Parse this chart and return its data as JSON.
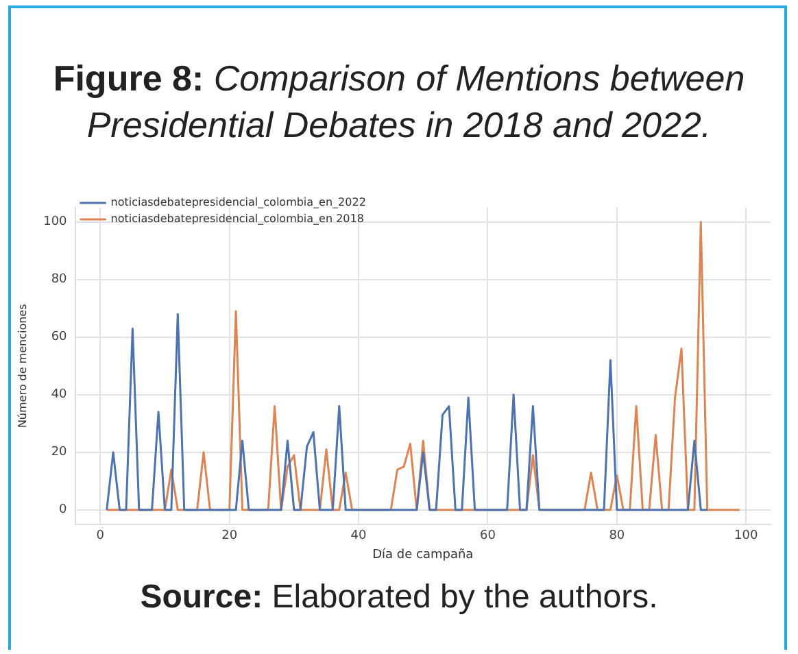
{
  "chart_data": {
    "type": "line",
    "title": "Figure 8: Comparison of Mentions between Presidential Debates in 2018 and 2022.",
    "xlabel": "Día de campaña",
    "ylabel": "Número de menciones",
    "annotations": [
      "Source: Elaborated by the authors."
    ],
    "x": [
      1,
      2,
      3,
      4,
      5,
      6,
      7,
      8,
      9,
      10,
      11,
      12,
      13,
      14,
      15,
      16,
      17,
      18,
      19,
      20,
      21,
      22,
      23,
      24,
      25,
      26,
      27,
      28,
      29,
      30,
      31,
      32,
      33,
      34,
      35,
      36,
      37,
      38,
      39,
      40,
      41,
      42,
      43,
      44,
      45,
      46,
      47,
      48,
      49,
      50,
      51,
      52,
      53,
      54,
      55,
      56,
      57,
      58,
      59,
      60,
      61,
      62,
      63,
      64,
      65,
      66,
      67,
      68,
      69,
      70,
      71,
      72,
      73,
      74,
      75,
      76,
      77,
      78,
      79,
      80,
      81,
      82,
      83,
      84,
      85,
      86,
      87,
      88,
      89,
      90,
      91,
      92,
      93,
      94,
      95,
      96,
      97,
      98,
      99
    ],
    "series": [
      {
        "name": "noticiasdebatepresidencial_colombia_en_2022",
        "color": "#4c72b0",
        "values": [
          0,
          20,
          0,
          0,
          63,
          0,
          0,
          0,
          34,
          0,
          0,
          68,
          0,
          0,
          0,
          0,
          0,
          0,
          0,
          0,
          0,
          24,
          0,
          0,
          0,
          0,
          0,
          0,
          24,
          0,
          0,
          22,
          27,
          0,
          0,
          0,
          36,
          0,
          0,
          0,
          0,
          0,
          0,
          0,
          0,
          0,
          0,
          0,
          0,
          20,
          0,
          0,
          33,
          36,
          0,
          0,
          39,
          0,
          0,
          0,
          0,
          0,
          0,
          40,
          0,
          0,
          36,
          0,
          0,
          0,
          0,
          0,
          0,
          0,
          0,
          0,
          0,
          0,
          52,
          0,
          0,
          0,
          0,
          0,
          0,
          0,
          0,
          0,
          0,
          0,
          0,
          24,
          0,
          0,
          null,
          null,
          null,
          null,
          null
        ]
      },
      {
        "name": "noticiasdebatepresidencial_colombia_en 2018",
        "color": "#dd8452",
        "values": [
          0,
          0,
          0,
          0,
          0,
          0,
          0,
          0,
          0,
          0,
          14,
          0,
          0,
          0,
          0,
          20,
          0,
          0,
          0,
          0,
          69,
          0,
          0,
          0,
          0,
          0,
          36,
          0,
          15,
          19,
          0,
          0,
          0,
          0,
          21,
          0,
          0,
          13,
          0,
          0,
          0,
          0,
          0,
          0,
          0,
          14,
          15,
          23,
          0,
          24,
          0,
          0,
          0,
          0,
          0,
          0,
          0,
          0,
          0,
          0,
          0,
          0,
          0,
          0,
          0,
          0,
          19,
          0,
          0,
          0,
          0,
          0,
          0,
          0,
          0,
          13,
          0,
          0,
          0,
          12,
          0,
          0,
          36,
          0,
          0,
          26,
          0,
          0,
          39,
          56,
          0,
          0,
          100,
          0,
          0,
          0,
          0,
          0,
          0
        ]
      }
    ],
    "xlim": [
      -3.9,
      103.8
    ],
    "xticks": [
      0,
      20,
      40,
      60,
      80,
      100
    ],
    "ylim": [
      -5,
      105
    ],
    "yticks": [
      0,
      20,
      40,
      60,
      80,
      100
    ],
    "grid": true,
    "legend": "top left",
    "marker": "none",
    "line_style": "solid"
  }
}
